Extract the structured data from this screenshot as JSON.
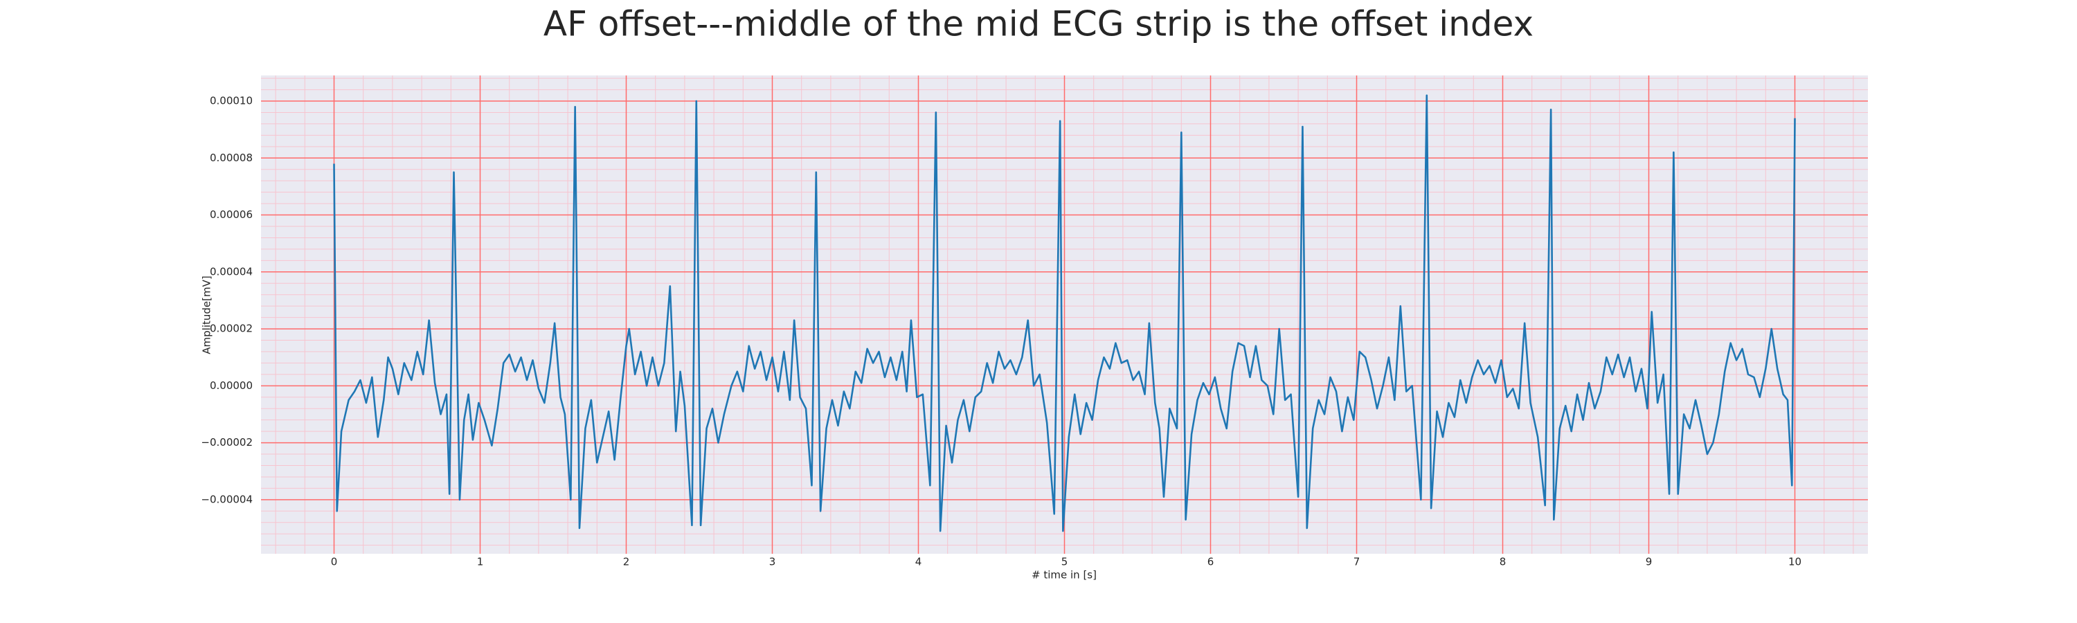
{
  "chart_data": {
    "type": "line",
    "title": "AF offset---middle of the mid ECG strip is the offset index",
    "xlabel": "# time in [s]",
    "ylabel": "Amplitude[mV]",
    "color": "#1f77b4",
    "background": "#eaeaf2",
    "grid": true,
    "grid_color": "#ff6b6b",
    "minor_grid": true,
    "minor_grid_color": "#f7c4cf",
    "xlim": [
      -0.5,
      10.5
    ],
    "xticks": [
      0,
      1,
      2,
      3,
      4,
      5,
      6,
      7,
      8,
      9,
      10
    ],
    "ylim": [
      -5.9e-05,
      0.000109
    ],
    "yticks": [
      {
        "value": -4e-05,
        "label": "−0.00004"
      },
      {
        "value": -2e-05,
        "label": "−0.00002"
      },
      {
        "value": 0,
        "label": "0.00000"
      },
      {
        "value": 2e-05,
        "label": "0.00002"
      },
      {
        "value": 4e-05,
        "label": "0.00004"
      },
      {
        "value": 6e-05,
        "label": "0.00006"
      },
      {
        "value": 8e-05,
        "label": "0.00008"
      },
      {
        "value": 0.0001,
        "label": "0.00010"
      }
    ],
    "x": [
      0.0,
      0.02,
      0.05,
      0.1,
      0.14,
      0.18,
      0.22,
      0.26,
      0.3,
      0.34,
      0.37,
      0.4,
      0.44,
      0.48,
      0.53,
      0.57,
      0.61,
      0.65,
      0.69,
      0.73,
      0.77,
      0.79,
      0.82,
      0.86,
      0.89,
      0.92,
      0.95,
      0.99,
      1.03,
      1.08,
      1.12,
      1.16,
      1.2,
      1.24,
      1.28,
      1.32,
      1.36,
      1.4,
      1.44,
      1.48,
      1.51,
      1.55,
      1.58,
      1.62,
      1.65,
      1.68,
      1.72,
      1.76,
      1.8,
      1.84,
      1.88,
      1.92,
      1.96,
      2.0,
      2.02,
      2.06,
      2.1,
      2.14,
      2.18,
      2.22,
      2.26,
      2.3,
      2.34,
      2.37,
      2.4,
      2.45,
      2.48,
      2.51,
      2.55,
      2.59,
      2.63,
      2.67,
      2.72,
      2.76,
      2.8,
      2.84,
      2.88,
      2.92,
      2.96,
      3.0,
      3.04,
      3.08,
      3.12,
      3.15,
      3.19,
      3.23,
      3.27,
      3.3,
      3.33,
      3.37,
      3.41,
      3.45,
      3.49,
      3.53,
      3.57,
      3.61,
      3.65,
      3.69,
      3.73,
      3.77,
      3.81,
      3.85,
      3.89,
      3.92,
      3.95,
      3.99,
      4.03,
      4.08,
      4.12,
      4.15,
      4.19,
      4.23,
      4.27,
      4.31,
      4.35,
      4.39,
      4.43,
      4.47,
      4.51,
      4.55,
      4.59,
      4.63,
      4.67,
      4.71,
      4.75,
      4.79,
      4.83,
      4.88,
      4.93,
      4.97,
      4.99,
      5.03,
      5.07,
      5.11,
      5.15,
      5.19,
      5.23,
      5.27,
      5.31,
      5.35,
      5.39,
      5.43,
      5.47,
      5.51,
      5.55,
      5.58,
      5.62,
      5.65,
      5.68,
      5.72,
      5.77,
      5.8,
      5.83,
      5.87,
      5.91,
      5.95,
      5.99,
      6.03,
      6.07,
      6.11,
      6.15,
      6.19,
      6.23,
      6.27,
      6.31,
      6.35,
      6.39,
      6.43,
      6.47,
      6.51,
      6.55,
      6.6,
      6.63,
      6.66,
      6.7,
      6.74,
      6.78,
      6.82,
      6.86,
      6.9,
      6.94,
      6.98,
      7.02,
      7.06,
      7.1,
      7.14,
      7.18,
      7.22,
      7.26,
      7.3,
      7.34,
      7.38,
      7.44,
      7.48,
      7.51,
      7.55,
      7.59,
      7.63,
      7.67,
      7.71,
      7.75,
      7.79,
      7.83,
      7.87,
      7.91,
      7.95,
      7.99,
      8.03,
      8.07,
      8.11,
      8.15,
      8.19,
      8.24,
      8.29,
      8.33,
      8.35,
      8.39,
      8.43,
      8.47,
      8.51,
      8.55,
      8.59,
      8.63,
      8.67,
      8.71,
      8.75,
      8.79,
      8.83,
      8.87,
      8.91,
      8.95,
      8.99,
      9.02,
      9.06,
      9.1,
      9.14,
      9.17,
      9.2,
      9.24,
      9.28,
      9.32,
      9.36,
      9.4,
      9.44,
      9.48,
      9.52,
      9.56,
      9.6,
      9.64,
      9.68,
      9.72,
      9.76,
      9.8,
      9.84,
      9.88,
      9.92,
      9.95,
      9.98,
      10.0
    ],
    "values": [
      7.8e-05,
      -4.4e-05,
      -1.6e-05,
      -5e-06,
      -2e-06,
      2e-06,
      -6e-06,
      3e-06,
      -1.8e-05,
      -5e-06,
      1e-05,
      6e-06,
      -3e-06,
      8e-06,
      2e-06,
      1.2e-05,
      4e-06,
      2.3e-05,
      1e-06,
      -1e-05,
      -3e-06,
      -3.8e-05,
      7.5e-05,
      -4e-05,
      -1.2e-05,
      -3e-06,
      -1.9e-05,
      -6e-06,
      -1.2e-05,
      -2.1e-05,
      -8e-06,
      8e-06,
      1.1e-05,
      5e-06,
      1e-05,
      2e-06,
      9e-06,
      -1e-06,
      -6e-06,
      8e-06,
      2.2e-05,
      -4e-06,
      -1e-05,
      -4e-05,
      9.8e-05,
      -5e-05,
      -1.5e-05,
      -5e-06,
      -2.7e-05,
      -1.8e-05,
      -9e-06,
      -2.6e-05,
      -5e-06,
      1.4e-05,
      2e-05,
      4e-06,
      1.2e-05,
      0,
      1e-05,
      0,
      8e-06,
      3.5e-05,
      -1.6e-05,
      5e-06,
      -7e-06,
      -4.9e-05,
      0.0001,
      -4.9e-05,
      -1.5e-05,
      -8e-06,
      -2e-05,
      -1e-05,
      0,
      5e-06,
      -2e-06,
      1.4e-05,
      6e-06,
      1.2e-05,
      2e-06,
      1e-05,
      -2e-06,
      1.2e-05,
      -5e-06,
      2.3e-05,
      -4e-06,
      -8e-06,
      -3.5e-05,
      7.5e-05,
      -4.4e-05,
      -1.5e-05,
      -5e-06,
      -1.4e-05,
      -2e-06,
      -8e-06,
      5e-06,
      1e-06,
      1.3e-05,
      8e-06,
      1.2e-05,
      3e-06,
      1e-05,
      2e-06,
      1.2e-05,
      -2e-06,
      2.3e-05,
      -4e-06,
      -3e-06,
      -3.5e-05,
      9.6e-05,
      -5.1e-05,
      -1.4e-05,
      -2.7e-05,
      -1.2e-05,
      -5e-06,
      -1.6e-05,
      -4e-06,
      -2e-06,
      8e-06,
      1e-06,
      1.2e-05,
      6e-06,
      9e-06,
      4e-06,
      1e-05,
      2.3e-05,
      0,
      4e-06,
      -1.3e-05,
      -4.5e-05,
      9.3e-05,
      -5.1e-05,
      -1.8e-05,
      -3e-06,
      -1.7e-05,
      -6e-06,
      -1.2e-05,
      2e-06,
      1e-05,
      6e-06,
      1.5e-05,
      8e-06,
      9e-06,
      2e-06,
      5e-06,
      -3e-06,
      2.2e-05,
      -6e-06,
      -1.5e-05,
      -3.9e-05,
      -8e-06,
      -1.5e-05,
      8.9e-05,
      -4.7e-05,
      -1.7e-05,
      -5e-06,
      1e-06,
      -3e-06,
      3e-06,
      -8e-06,
      -1.5e-05,
      5e-06,
      1.5e-05,
      1.4e-05,
      3e-06,
      1.4e-05,
      2e-06,
      0,
      -1e-05,
      2e-05,
      -5e-06,
      -3e-06,
      -3.9e-05,
      9.1e-05,
      -5e-05,
      -1.5e-05,
      -5e-06,
      -1e-05,
      3e-06,
      -2e-06,
      -1.6e-05,
      -4e-06,
      -1.2e-05,
      1.2e-05,
      1e-05,
      2e-06,
      -8e-06,
      0,
      1e-05,
      -5e-06,
      2.8e-05,
      -2e-06,
      0,
      -4e-05,
      0.000102,
      -4.3e-05,
      -9e-06,
      -1.8e-05,
      -6e-06,
      -1.1e-05,
      2e-06,
      -6e-06,
      3e-06,
      9e-06,
      4e-06,
      7e-06,
      1e-06,
      9e-06,
      -4e-06,
      -1e-06,
      -8e-06,
      2.2e-05,
      -6e-06,
      -1.8e-05,
      -4.2e-05,
      9.7e-05,
      -4.7e-05,
      -1.5e-05,
      -7e-06,
      -1.6e-05,
      -3e-06,
      -1.2e-05,
      1e-06,
      -8e-06,
      -2e-06,
      1e-05,
      4e-06,
      1.1e-05,
      3e-06,
      1e-05,
      -2e-06,
      6e-06,
      -8e-06,
      2.6e-05,
      -6e-06,
      4e-06,
      -3.8e-05,
      8.2e-05,
      -3.8e-05,
      -1e-05,
      -1.5e-05,
      -5e-06,
      -1.4e-05,
      -2.4e-05,
      -2e-05,
      -1e-05,
      5e-06,
      1.5e-05,
      9e-06,
      1.3e-05,
      4e-06,
      3e-06,
      -4e-06,
      6e-06,
      2e-05,
      6e-06,
      -3e-06,
      -5e-06,
      -3.5e-05,
      9.4e-05
    ]
  }
}
